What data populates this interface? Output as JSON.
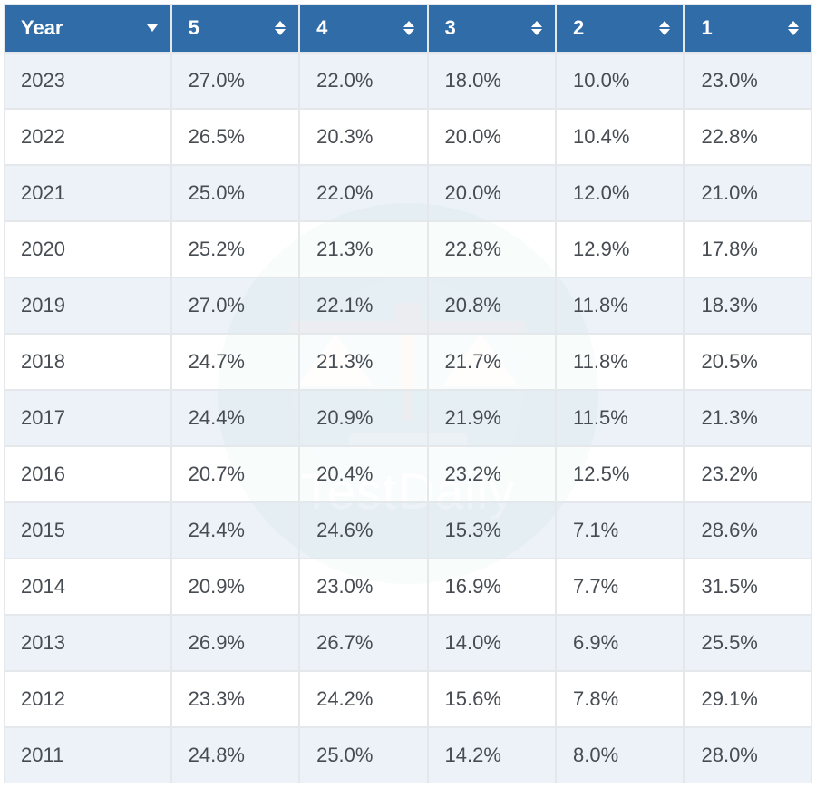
{
  "watermark_text": "TestDaily",
  "colors": {
    "header_bg": "#2f6ca8",
    "header_text": "#ffffff",
    "row_odd_bg": "#e9f0f6",
    "row_even_bg": "#ffffff",
    "cell_text": "#474c52",
    "border": "#e5e8eb",
    "watermark_circle": "#5aaea2"
  },
  "table": {
    "type": "table",
    "columns": [
      {
        "label": "Year",
        "sort": "dropdown"
      },
      {
        "label": "5",
        "sort": "both"
      },
      {
        "label": "4",
        "sort": "both"
      },
      {
        "label": "3",
        "sort": "both"
      },
      {
        "label": "2",
        "sort": "both"
      },
      {
        "label": "1",
        "sort": "both"
      }
    ],
    "rows": [
      [
        "2023",
        "27.0%",
        "22.0%",
        "18.0%",
        "10.0%",
        "23.0%"
      ],
      [
        "2022",
        "26.5%",
        "20.3%",
        "20.0%",
        "10.4%",
        "22.8%"
      ],
      [
        "2021",
        "25.0%",
        "22.0%",
        "20.0%",
        "12.0%",
        "21.0%"
      ],
      [
        "2020",
        "25.2%",
        "21.3%",
        "22.8%",
        "12.9%",
        "17.8%"
      ],
      [
        "2019",
        "27.0%",
        "22.1%",
        "20.8%",
        "11.8%",
        "18.3%"
      ],
      [
        "2018",
        "24.7%",
        "21.3%",
        "21.7%",
        "11.8%",
        "20.5%"
      ],
      [
        "2017",
        "24.4%",
        "20.9%",
        "21.9%",
        "11.5%",
        "21.3%"
      ],
      [
        "2016",
        "20.7%",
        "20.4%",
        "23.2%",
        "12.5%",
        "23.2%"
      ],
      [
        "2015",
        "24.4%",
        "24.6%",
        "15.3%",
        "7.1%",
        "28.6%"
      ],
      [
        "2014",
        "20.9%",
        "23.0%",
        "16.9%",
        "7.7%",
        "31.5%"
      ],
      [
        "2013",
        "26.9%",
        "26.7%",
        "14.0%",
        "6.9%",
        "25.5%"
      ],
      [
        "2012",
        "23.3%",
        "24.2%",
        "15.6%",
        "7.8%",
        "29.1%"
      ],
      [
        "2011",
        "24.8%",
        "25.0%",
        "14.2%",
        "8.0%",
        "28.0%"
      ]
    ]
  }
}
